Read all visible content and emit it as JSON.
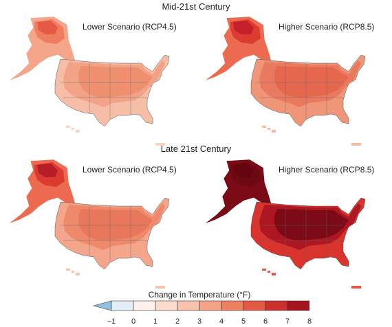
{
  "sections": [
    {
      "title": "Mid-21st Century",
      "panels": [
        {
          "label": "Lower Scenario (RCP4.5)",
          "colors": {
            "ak_outer": "#f4a58a",
            "ak_mid": "#ef7d62",
            "ak_inner": "#e65a45",
            "us_base": "#f6bea6",
            "us_mid": "#f2a287",
            "us_core": "#ee9070",
            "islands": "#f9d4c3"
          }
        },
        {
          "label": "Higher Scenario (RCP8.5)",
          "colors": {
            "ak_outer": "#ec6a50",
            "ak_mid": "#dc3b30",
            "ak_inner": "#c4202a",
            "us_base": "#f09678",
            "us_mid": "#ea7a5f",
            "us_core": "#e5684e",
            "islands": "#f6b9a1"
          }
        }
      ]
    },
    {
      "title": "Late 21st Century",
      "panels": [
        {
          "label": "Lower Scenario (RCP4.5)",
          "colors": {
            "ak_outer": "#ec6a50",
            "ak_mid": "#db3a30",
            "ak_inner": "#b81c28",
            "us_base": "#f3a68b",
            "us_mid": "#ee8a6b",
            "us_core": "#e9775b",
            "islands": "#f7c3ad"
          }
        },
        {
          "label": "Higher Scenario (RCP8.5)",
          "colors": {
            "ak_outer": "#7a0a16",
            "ak_mid": "#6e0812",
            "ak_inner": "#64060f",
            "us_base": "#d8332d",
            "us_mid": "#ad1722",
            "us_core": "#7c0b17",
            "islands": "#e25a44"
          }
        }
      ]
    }
  ],
  "legend": {
    "title": "Change in Temperature (°F)",
    "ticks": [
      "−1",
      "0",
      "1",
      "2",
      "3",
      "4",
      "5",
      "6",
      "7",
      "8"
    ],
    "bins": [
      "#e4eef6",
      "#fdf0ea",
      "#fbdccd",
      "#f8c3ac",
      "#f4a387",
      "#ee8062",
      "#e35a44",
      "#cc2f2c",
      "#a4151f"
    ],
    "under_color": "#8fc1e3",
    "over_color": "#670713"
  }
}
